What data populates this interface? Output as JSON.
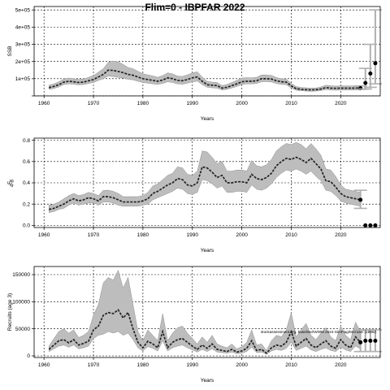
{
  "title": "Flim=0 - IBPFAR 2022",
  "watermark": "stockassessment.org, baseline/IWWM 2024-SimFlag/MCruse/ (1895/)",
  "chart_data": [
    {
      "type": "line",
      "ylabel": "SSB",
      "xlabel": "Years",
      "xlim": [
        1958,
        2028
      ],
      "ylim": [
        0,
        520000
      ],
      "yticks": [
        0,
        100000,
        200000,
        300000,
        400000,
        500000
      ],
      "ytick_labels": [
        "",
        "1e+05",
        "2e+05",
        "3e+05",
        "4e+05",
        "5e+05"
      ],
      "xticks": [
        1960,
        1970,
        1980,
        1990,
        2000,
        2010,
        2020
      ],
      "grid": true,
      "colors": {
        "line": "#222222",
        "band": "#bdbdbd",
        "band_edge": "#8f8f8f",
        "forecast": "#000000",
        "forecast_ci": "#b0b0b0"
      },
      "series": [
        {
          "x": [
            1961,
            1962,
            1963,
            1964,
            1965,
            1966,
            1967,
            1968,
            1969,
            1970,
            1971,
            1972,
            1973,
            1974,
            1975,
            1976,
            1977,
            1978,
            1979,
            1980,
            1981,
            1982,
            1983,
            1984,
            1985,
            1986,
            1987,
            1988,
            1989,
            1990,
            1991,
            1992,
            1993,
            1994,
            1995,
            1996,
            1997,
            1998,
            1999,
            2000,
            2001,
            2002,
            2003,
            2004,
            2005,
            2006,
            2007,
            2008,
            2009,
            2010,
            2011,
            2012,
            2013,
            2014,
            2015,
            2016,
            2017,
            2018,
            2019,
            2020,
            2021,
            2022,
            2023,
            2024
          ],
          "y": [
            48000,
            55000,
            65000,
            80000,
            85000,
            82000,
            78000,
            80000,
            88000,
            95000,
            110000,
            125000,
            150000,
            148000,
            142000,
            135000,
            125000,
            120000,
            110000,
            100000,
            95000,
            90000,
            85000,
            92000,
            105000,
            100000,
            90000,
            88000,
            95000,
            105000,
            110000,
            85000,
            65000,
            62000,
            60000,
            45000,
            50000,
            60000,
            70000,
            82000,
            85000,
            85000,
            88000,
            100000,
            100000,
            98000,
            88000,
            82000,
            80000,
            58000,
            42000,
            38000,
            36000,
            35000,
            36000,
            40000,
            48000,
            45000,
            44000,
            45000,
            45000,
            45000,
            45000,
            46000
          ],
          "lo": [
            38000,
            43000,
            52000,
            66000,
            70000,
            68000,
            64000,
            66000,
            72000,
            78000,
            90000,
            100000,
            115000,
            112000,
            108000,
            103000,
            97000,
            93000,
            85000,
            78000,
            74000,
            70000,
            67000,
            72000,
            82000,
            78000,
            70000,
            68000,
            74000,
            82000,
            86000,
            66000,
            50000,
            47000,
            45000,
            34000,
            38000,
            46000,
            55000,
            66000,
            70000,
            70000,
            72000,
            82000,
            83000,
            81000,
            72000,
            67000,
            65000,
            46000,
            33000,
            30000,
            28000,
            27000,
            28000,
            31000,
            37000,
            34000,
            33000,
            34000,
            34000,
            34000,
            34000,
            34000
          ],
          "hi": [
            62000,
            70000,
            82000,
            98000,
            104000,
            100000,
            96000,
            98000,
            108000,
            118000,
            138000,
            158000,
            195000,
            203000,
            198000,
            183000,
            165000,
            158000,
            143000,
            129000,
            122000,
            116000,
            108000,
            118000,
            134000,
            128000,
            115000,
            113000,
            122000,
            134000,
            140000,
            110000,
            84000,
            80000,
            78000,
            60000,
            66000,
            78000,
            90000,
            104000,
            106000,
            105000,
            108000,
            122000,
            121000,
            119000,
            107000,
            100000,
            98000,
            73000,
            54000,
            49000,
            47000,
            45000,
            46000,
            52000,
            62000,
            59000,
            57000,
            58000,
            58000,
            58000,
            58000,
            60000
          ]
        }
      ],
      "forecast": {
        "x": [
          2024,
          2025,
          2026,
          2027
        ],
        "y": [
          45000,
          75000,
          130000,
          190000
        ],
        "lo": [
          38000,
          40000,
          50000,
          70000
        ],
        "hi": [
          58000,
          160000,
          300000,
          500000
        ]
      }
    },
    {
      "type": "line",
      "ylabel": "F",
      "ylabel_sub": "4-8",
      "xlabel": "Years",
      "xlim": [
        1958,
        2028
      ],
      "ylim": [
        -0.02,
        0.82
      ],
      "yticks": [
        0.0,
        0.2,
        0.4,
        0.6,
        0.8
      ],
      "ytick_labels": [
        "0.0",
        "0.2",
        "0.4",
        "0.6",
        "0.8"
      ],
      "xticks": [
        1960,
        1970,
        1980,
        1990,
        2000,
        2010,
        2020
      ],
      "grid": true,
      "colors": {
        "line": "#222222",
        "band": "#bdbdbd",
        "band_edge": "#8f8f8f",
        "forecast": "#000000",
        "forecast_ci": "#b0b0b0"
      },
      "series": [
        {
          "x": [
            1961,
            1962,
            1963,
            1964,
            1965,
            1966,
            1967,
            1968,
            1969,
            1970,
            1971,
            1972,
            1973,
            1974,
            1975,
            1976,
            1977,
            1978,
            1979,
            1980,
            1981,
            1982,
            1983,
            1984,
            1985,
            1986,
            1987,
            1988,
            1989,
            1990,
            1991,
            1992,
            1993,
            1994,
            1995,
            1996,
            1997,
            1998,
            1999,
            2000,
            2001,
            2002,
            2003,
            2004,
            2005,
            2006,
            2007,
            2008,
            2009,
            2010,
            2011,
            2012,
            2013,
            2014,
            2015,
            2016,
            2017,
            2018,
            2019,
            2020,
            2021,
            2022,
            2023,
            2024
          ],
          "y": [
            0.15,
            0.16,
            0.18,
            0.2,
            0.23,
            0.25,
            0.23,
            0.24,
            0.26,
            0.25,
            0.23,
            0.27,
            0.27,
            0.26,
            0.24,
            0.22,
            0.22,
            0.22,
            0.22,
            0.23,
            0.25,
            0.3,
            0.32,
            0.35,
            0.38,
            0.4,
            0.44,
            0.43,
            0.38,
            0.37,
            0.4,
            0.55,
            0.54,
            0.5,
            0.45,
            0.47,
            0.4,
            0.4,
            0.41,
            0.41,
            0.4,
            0.48,
            0.44,
            0.43,
            0.45,
            0.49,
            0.56,
            0.6,
            0.63,
            0.62,
            0.64,
            0.62,
            0.59,
            0.63,
            0.58,
            0.53,
            0.42,
            0.41,
            0.36,
            0.3,
            0.27,
            0.26,
            0.25,
            0.24
          ],
          "lo": [
            0.12,
            0.13,
            0.15,
            0.16,
            0.19,
            0.21,
            0.19,
            0.2,
            0.21,
            0.21,
            0.19,
            0.22,
            0.22,
            0.21,
            0.19,
            0.18,
            0.18,
            0.18,
            0.18,
            0.19,
            0.2,
            0.24,
            0.26,
            0.28,
            0.3,
            0.32,
            0.35,
            0.34,
            0.3,
            0.29,
            0.31,
            0.43,
            0.42,
            0.39,
            0.35,
            0.37,
            0.31,
            0.31,
            0.32,
            0.32,
            0.31,
            0.38,
            0.34,
            0.33,
            0.35,
            0.39,
            0.45,
            0.49,
            0.52,
            0.51,
            0.53,
            0.51,
            0.48,
            0.51,
            0.46,
            0.42,
            0.33,
            0.32,
            0.28,
            0.23,
            0.21,
            0.2,
            0.19,
            0.18
          ],
          "hi": [
            0.19,
            0.2,
            0.22,
            0.25,
            0.28,
            0.3,
            0.28,
            0.29,
            0.31,
            0.3,
            0.28,
            0.33,
            0.33,
            0.32,
            0.3,
            0.27,
            0.27,
            0.27,
            0.27,
            0.28,
            0.31,
            0.37,
            0.39,
            0.43,
            0.47,
            0.49,
            0.55,
            0.54,
            0.48,
            0.47,
            0.51,
            0.7,
            0.69,
            0.64,
            0.58,
            0.6,
            0.51,
            0.51,
            0.52,
            0.52,
            0.51,
            0.61,
            0.56,
            0.55,
            0.57,
            0.62,
            0.7,
            0.74,
            0.77,
            0.76,
            0.78,
            0.76,
            0.72,
            0.77,
            0.72,
            0.66,
            0.53,
            0.52,
            0.46,
            0.38,
            0.34,
            0.33,
            0.32,
            0.31
          ]
        }
      ],
      "forecast": {
        "x": [
          2024,
          2025,
          2026,
          2027
        ],
        "y": [
          0.24,
          0.0,
          0.0,
          0.0
        ],
        "lo": [
          0.16,
          0.0,
          0.0,
          0.0
        ],
        "hi": [
          0.33,
          0.0,
          0.0,
          0.0
        ]
      }
    },
    {
      "type": "line",
      "ylabel": "Recruits (age 3)",
      "xlabel": "Years",
      "xlim": [
        1958,
        2028
      ],
      "ylim": [
        -3000,
        165000
      ],
      "yticks": [
        0,
        50000,
        100000,
        150000
      ],
      "ytick_labels": [
        "0",
        "50000",
        "100000",
        "150000"
      ],
      "xticks": [
        1960,
        1970,
        1980,
        1990,
        2000,
        2010,
        2020
      ],
      "grid": true,
      "colors": {
        "line": "#222222",
        "band": "#bdbdbd",
        "band_edge": "#8f8f8f",
        "forecast": "#000000",
        "forecast_ci": "#b0b0b0"
      },
      "series": [
        {
          "x": [
            1961,
            1962,
            1963,
            1964,
            1965,
            1966,
            1967,
            1968,
            1969,
            1970,
            1971,
            1972,
            1973,
            1974,
            1975,
            1976,
            1977,
            1978,
            1979,
            1980,
            1981,
            1982,
            1983,
            1984,
            1985,
            1986,
            1987,
            1988,
            1989,
            1990,
            1991,
            1992,
            1993,
            1994,
            1995,
            1996,
            1997,
            1998,
            1999,
            2000,
            2001,
            2002,
            2003,
            2004,
            2005,
            2006,
            2007,
            2008,
            2009,
            2010,
            2011,
            2012,
            2013,
            2014,
            2015,
            2016,
            2017,
            2018,
            2019,
            2020,
            2021,
            2022,
            2023,
            2024
          ],
          "y": [
            12000,
            20000,
            28000,
            30000,
            24000,
            30000,
            20000,
            23000,
            27000,
            48000,
            55000,
            75000,
            80000,
            78000,
            85000,
            70000,
            80000,
            50000,
            25000,
            15000,
            27000,
            22000,
            15000,
            45000,
            15000,
            25000,
            30000,
            32000,
            25000,
            18000,
            12000,
            20000,
            14000,
            22000,
            12000,
            10000,
            8000,
            12000,
            7000,
            9000,
            14000,
            28000,
            10000,
            12000,
            5000,
            15000,
            20000,
            18000,
            25000,
            45000,
            18000,
            25000,
            32000,
            20000,
            15000,
            22000,
            28000,
            18000,
            14000,
            30000,
            20000,
            15000,
            35000,
            25000
          ],
          "lo": [
            8000,
            13000,
            18000,
            20000,
            16000,
            20000,
            13000,
            15000,
            18000,
            32000,
            38000,
            40000,
            45000,
            42000,
            45000,
            38000,
            42000,
            30000,
            15000,
            9000,
            17000,
            14000,
            9000,
            28000,
            9000,
            15000,
            18000,
            20000,
            15000,
            11000,
            7000,
            12000,
            8000,
            13000,
            7000,
            6000,
            5000,
            7000,
            4000,
            5000,
            8000,
            16000,
            6000,
            7000,
            3000,
            9000,
            12000,
            10000,
            14000,
            25000,
            10000,
            14000,
            18000,
            11000,
            8000,
            12000,
            15000,
            10000,
            8000,
            16000,
            11000,
            8000,
            18000,
            13000
          ],
          "hi": [
            18000,
            32000,
            45000,
            50000,
            42000,
            48000,
            34000,
            38000,
            45000,
            75000,
            95000,
            135000,
            145000,
            140000,
            158000,
            125000,
            145000,
            95000,
            45000,
            28000,
            48000,
            38000,
            28000,
            78000,
            28000,
            42000,
            52000,
            55000,
            42000,
            32000,
            22000,
            35000,
            25000,
            38000,
            22000,
            18000,
            15000,
            22000,
            13000,
            17000,
            25000,
            48000,
            20000,
            22000,
            10000,
            28000,
            38000,
            35000,
            48000,
            80000,
            35000,
            48000,
            60000,
            38000,
            30000,
            42000,
            52000,
            35000,
            28000,
            55000,
            38000,
            30000,
            62000,
            45000
          ]
        }
      ],
      "forecast": {
        "x": [
          2024,
          2025,
          2026,
          2027
        ],
        "y": [
          25000,
          28000,
          28000,
          28000
        ],
        "lo": [
          8000,
          8000,
          8000,
          8000
        ],
        "hi": [
          48000,
          48000,
          48000,
          48000
        ]
      }
    }
  ]
}
